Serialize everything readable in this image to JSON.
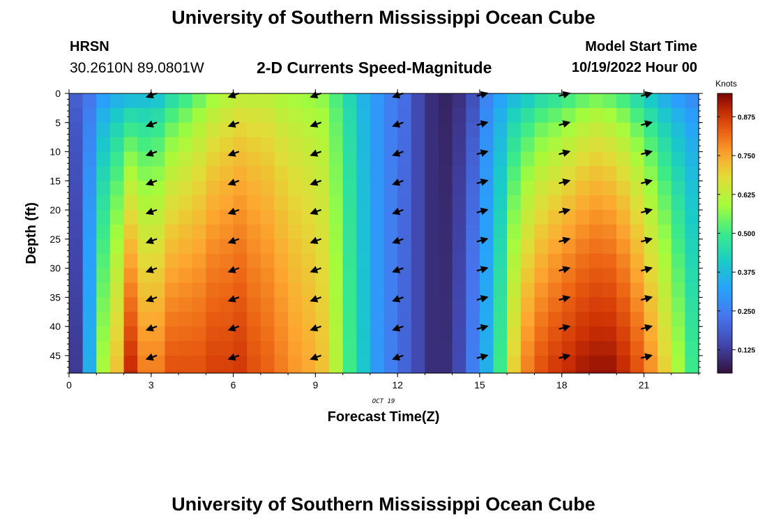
{
  "page": {
    "title": "University of Southern Mississippi Ocean Cube",
    "footer_title": "University of Southern Mississippi Ocean Cube",
    "station": "HRSN",
    "coordinates": "30.2610N  89.0801W",
    "subtitle": "2-D Currents Speed-Magnitude",
    "model_start_label": "Model Start Time",
    "model_start_value": "10/19/2022 Hour 00"
  },
  "chart_data": {
    "type": "heatmap",
    "title": "2-D Currents Speed-Magnitude",
    "xlabel": "Forecast Time(Z)",
    "ylabel": "Depth (ft)",
    "date_note": "OCT 19",
    "xlim": [
      0,
      23
    ],
    "ylim": [
      0,
      48
    ],
    "y_inverted": true,
    "x_ticks": [
      0,
      3,
      6,
      9,
      12,
      15,
      18,
      21
    ],
    "x_tick_labels": [
      "0",
      "3",
      "6",
      "9",
      "12",
      "15",
      "18",
      "21"
    ],
    "y_ticks": [
      0,
      5,
      10,
      15,
      20,
      25,
      30,
      35,
      40,
      45
    ],
    "y_tick_labels": [
      "0",
      "5",
      "10",
      "15",
      "20",
      "25",
      "30",
      "35",
      "40",
      "45"
    ],
    "colorbar": {
      "title": "Knots",
      "range": [
        0.05,
        0.95
      ],
      "ticks": [
        0.125,
        0.25,
        0.375,
        0.5,
        0.625,
        0.75,
        0.875
      ],
      "tick_labels": [
        "0.125",
        "0.250",
        "0.375",
        "0.500",
        "0.625",
        "0.750",
        "0.875"
      ],
      "colormap": "turbo"
    },
    "hours": [
      0,
      0.5,
      1,
      1.5,
      2,
      2.5,
      3,
      3.5,
      4,
      4.5,
      5,
      5.5,
      6,
      6.5,
      7,
      7.5,
      8,
      8.5,
      9,
      9.5,
      10,
      10.5,
      11,
      11.5,
      12,
      12.5,
      13,
      13.5,
      14,
      14.5,
      15,
      15.5,
      16,
      16.5,
      17,
      17.5,
      18,
      18.5,
      19,
      19.5,
      20,
      20.5,
      21,
      21.5,
      22,
      22.5
    ],
    "depth_levels": [
      0,
      2.5,
      5,
      7.5,
      10,
      12.5,
      15,
      17.5,
      20,
      22.5,
      25,
      27.5,
      30,
      32.5,
      35,
      37.5,
      40,
      42.5,
      45,
      47.5
    ],
    "surface_speed": [
      0.2,
      0.22,
      0.27,
      0.3,
      0.3,
      0.32,
      0.34,
      0.4,
      0.45,
      0.5,
      0.55,
      0.58,
      0.6,
      0.6,
      0.6,
      0.58,
      0.57,
      0.56,
      0.55,
      0.5,
      0.43,
      0.35,
      0.3,
      0.25,
      0.22,
      0.15,
      0.1,
      0.08,
      0.1,
      0.15,
      0.25,
      0.3,
      0.33,
      0.36,
      0.4,
      0.42,
      0.45,
      0.48,
      0.5,
      0.48,
      0.45,
      0.4,
      0.35,
      0.3,
      0.27,
      0.25
    ],
    "bottom_speed": [
      0.12,
      0.35,
      0.6,
      0.72,
      0.9,
      0.8,
      0.8,
      0.85,
      0.85,
      0.85,
      0.87,
      0.87,
      0.88,
      0.85,
      0.83,
      0.8,
      0.77,
      0.75,
      0.72,
      0.62,
      0.5,
      0.4,
      0.3,
      0.25,
      0.2,
      0.15,
      0.1,
      0.1,
      0.15,
      0.25,
      0.35,
      0.5,
      0.7,
      0.8,
      0.85,
      0.88,
      0.9,
      0.92,
      0.93,
      0.93,
      0.9,
      0.85,
      0.78,
      0.7,
      0.6,
      0.5
    ],
    "arrow_hours": [
      2.8,
      5.8,
      8.8,
      11.8,
      14.8,
      17.8,
      20.8
    ],
    "arrow_depths": [
      0,
      5,
      10,
      15,
      20,
      25,
      30,
      35,
      40,
      45
    ],
    "arrow_direction_deg": [
      200,
      200,
      200,
      200,
      15,
      15,
      15
    ]
  }
}
